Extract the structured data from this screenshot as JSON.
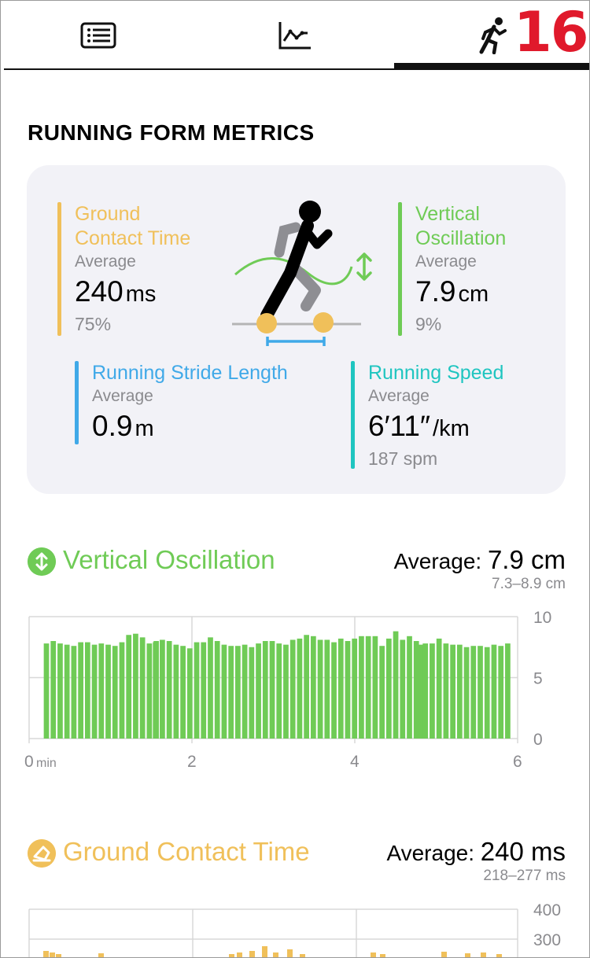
{
  "tabs": {
    "items": [
      {
        "icon": "list-icon"
      },
      {
        "icon": "line-chart-icon"
      },
      {
        "icon": "runner-icon"
      }
    ],
    "active_index": 2,
    "badge_number": "16"
  },
  "section": {
    "title": "RUNNING FORM METRICS"
  },
  "summary": {
    "ground_contact": {
      "name_line1": "Ground",
      "name_line2": "Contact Time",
      "sub": "Average",
      "value": "240",
      "unit": "ms",
      "pct": "75%",
      "color": "#f0c05a"
    },
    "vertical_oscillation": {
      "name_line1": "Vertical",
      "name_line2": "Oscillation",
      "sub": "Average",
      "value": "7.9",
      "unit": "cm",
      "pct": "9%",
      "color": "#6fcb56"
    },
    "stride_length": {
      "name": "Running Stride Length",
      "sub": "Average",
      "value": "0.9",
      "unit": "m",
      "color": "#40a9e8"
    },
    "speed": {
      "name": "Running Speed",
      "sub": "Average",
      "value": "6′11″",
      "unit": "/km",
      "extra": "187 spm",
      "color": "#1fc5c0"
    }
  },
  "charts": {
    "vertical_oscillation": {
      "title": "Vertical Oscillation",
      "avg_label": "Average:",
      "avg_value": "7.9 cm",
      "range": "7.3–8.9 cm",
      "icon": "vertical-arrows-icon",
      "color": "#6fcb56"
    },
    "ground_contact": {
      "title": "Ground Contact Time",
      "avg_label": "Average:",
      "avg_value": "240 ms",
      "range": "218–277 ms",
      "icon": "foot-strike-icon",
      "color": "#f0c05a"
    }
  },
  "chart_data": [
    {
      "type": "bar",
      "title": "Vertical Oscillation",
      "xlabel": "min",
      "ylabel": "",
      "x_ticks": [
        "0",
        "2",
        "4",
        "6"
      ],
      "x_unit": "min",
      "y_ticks": [
        "0",
        "5",
        "10"
      ],
      "xlim": [
        0,
        6
      ],
      "ylim": [
        0,
        10
      ],
      "grid": true,
      "segments": [
        {
          "x_start": 0.18,
          "values": [
            7.8,
            8.0,
            7.8,
            7.7,
            7.6,
            7.9,
            7.9,
            7.7,
            7.8,
            7.7,
            7.6,
            7.9,
            8.5,
            8.6,
            8.3,
            7.8,
            8.0
          ]
        },
        {
          "x_start": 1.52,
          "values": [
            7.9,
            8.1,
            8.0,
            7.7,
            7.6,
            7.4,
            7.9,
            7.9,
            8.3,
            8.0,
            7.7,
            7.6,
            7.6,
            7.7,
            7.5,
            7.8,
            8.0,
            8.0,
            7.8,
            7.7,
            8.1,
            8.2,
            8.5,
            8.4,
            8.1,
            8.1,
            7.9,
            8.2,
            8.0,
            8.2,
            8.4,
            8.4,
            8.4,
            7.6,
            8.2,
            8.8,
            8.1,
            8.4,
            8.0,
            7.7
          ]
        },
        {
          "x_start": 4.75,
          "values": [
            7.7,
            7.8,
            7.8,
            8.2,
            7.8,
            7.7,
            7.7,
            7.5,
            7.6,
            7.6,
            7.5,
            7.7,
            7.6,
            7.8
          ]
        }
      ]
    },
    {
      "type": "bar",
      "title": "Ground Contact Time",
      "y_ticks": [
        "300",
        "400"
      ],
      "ylim": [
        200,
        400
      ],
      "grid": true,
      "partial": true,
      "values": []
    }
  ]
}
